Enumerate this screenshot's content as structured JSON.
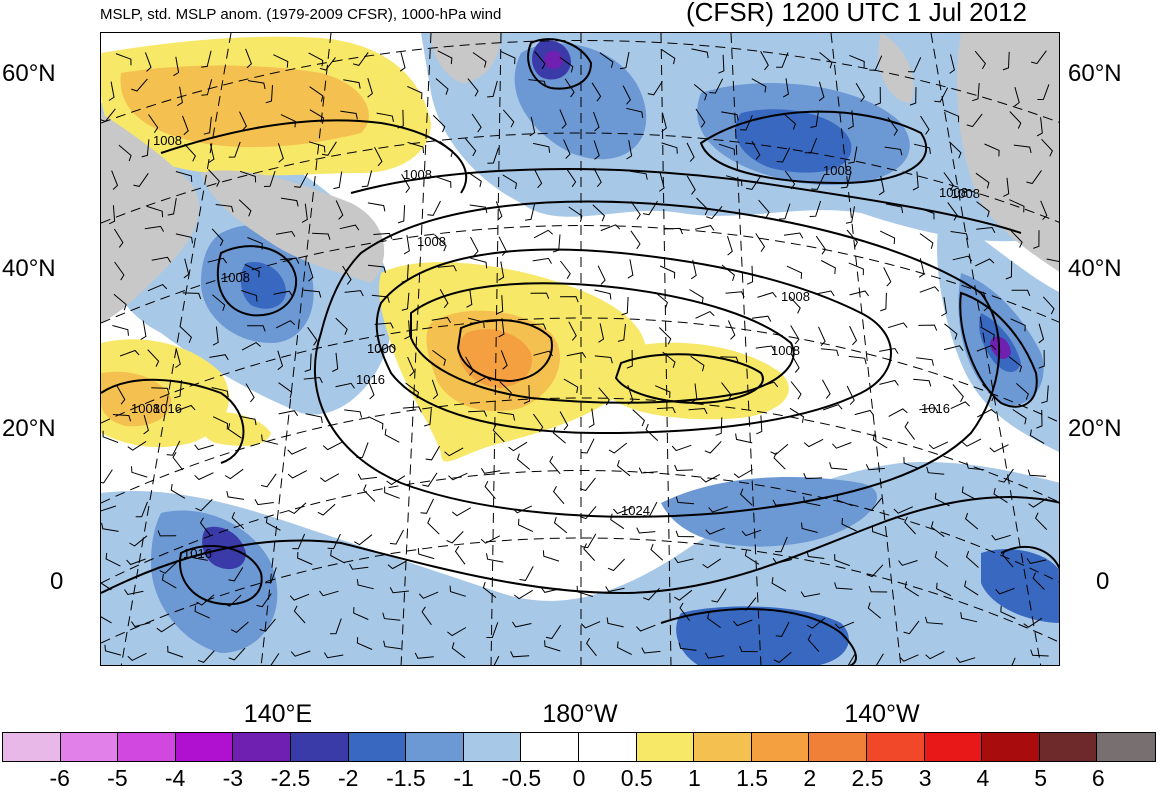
{
  "header": {
    "subtitle": "MSLP, std. MSLP anom. (1979-2009 CFSR), 1000-hPa wind",
    "title": "(CFSR) 1200 UTC 1 Jul 2012"
  },
  "map": {
    "region": "North Pacific",
    "projection": "conic",
    "lat_labels_left": [
      "60°N",
      "40°N",
      "20°N",
      "0"
    ],
    "lat_labels_right": [
      "60°N",
      "40°N",
      "20°N",
      "0"
    ],
    "lon_labels": [
      "140°E",
      "180°W",
      "140°W"
    ],
    "contour_labels": [
      "1008",
      "1008",
      "1008",
      "1008",
      "1008",
      "1008",
      "1008",
      "1000",
      "1016",
      "1008",
      "1008",
      "1016",
      "1024",
      "1016",
      "1016",
      "1008"
    ],
    "contour_interval_hpa": 8,
    "land_color": "#c8c8c8",
    "anomaly_features": [
      {
        "type": "positive",
        "sign": "+",
        "level": 2.0,
        "near": "30°N 175°E"
      },
      {
        "type": "positive",
        "sign": "+",
        "level": 1.0,
        "near": "25°N 165°W"
      },
      {
        "type": "positive",
        "sign": "+",
        "level": 1.5,
        "near": "60°N 110°E"
      },
      {
        "type": "negative",
        "sign": "-",
        "level": -2.5,
        "near": "62°N 175°E"
      },
      {
        "type": "negative",
        "sign": "-",
        "level": -2.5,
        "near": "30°N 125°W"
      },
      {
        "type": "negative",
        "sign": "-",
        "level": -2.0,
        "near": "5°N 130°E"
      },
      {
        "type": "negative",
        "sign": "-",
        "level": -2.0,
        "near": "-5°S 155°W"
      }
    ]
  },
  "colorbar": {
    "tick_labels": [
      "-6",
      "-5",
      "-4",
      "-3",
      "-2.5",
      "-2",
      "-1.5",
      "-1",
      "-0.5",
      "0",
      "0.5",
      "1",
      "1.5",
      "2",
      "2.5",
      "3",
      "4",
      "5",
      "6"
    ],
    "colors": [
      "#e8b8e8",
      "#e080e8",
      "#d048e0",
      "#b010d0",
      "#7020b0",
      "#3a3aa8",
      "#3868c0",
      "#6c98d4",
      "#a8c8e8",
      "#ffffff",
      "#ffffff",
      "#f8e868",
      "#f4c050",
      "#f4a040",
      "#f08038",
      "#f04828",
      "#e81818",
      "#a80c0c",
      "#6e2a2a",
      "#787070"
    ]
  }
}
